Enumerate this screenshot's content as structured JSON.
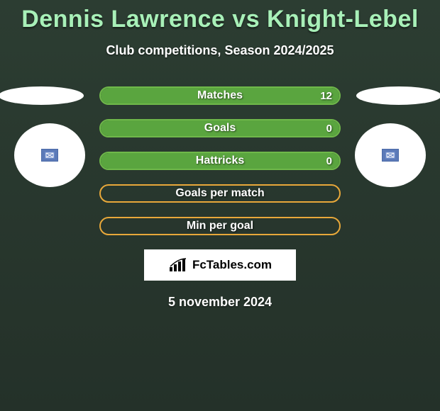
{
  "title": "Dennis Lawrence vs Knight-Lebel",
  "subtitle": "Club competitions, Season 2024/2025",
  "date": "5 november 2024",
  "logo": {
    "text": "FcTables.com"
  },
  "colors": {
    "title": "#a8f0b8",
    "bar_green_border": "#6fb84a",
    "bar_green_fill": "#5aa53f",
    "bar_orange_border": "#e8a83a",
    "bar_orange_fill": "#d89830",
    "background": "#2a3b2f"
  },
  "bars": [
    {
      "label": "Matches",
      "value": "12",
      "fill_pct": 100,
      "color": "green"
    },
    {
      "label": "Goals",
      "value": "0",
      "fill_pct": 100,
      "color": "green"
    },
    {
      "label": "Hattricks",
      "value": "0",
      "fill_pct": 100,
      "color": "green"
    },
    {
      "label": "Goals per match",
      "value": "",
      "fill_pct": 0,
      "color": "orange"
    },
    {
      "label": "Min per goal",
      "value": "",
      "fill_pct": 0,
      "color": "orange"
    }
  ],
  "side_badges": {
    "left": {
      "icon": "flag-placeholder"
    },
    "right": {
      "icon": "flag-placeholder"
    }
  }
}
